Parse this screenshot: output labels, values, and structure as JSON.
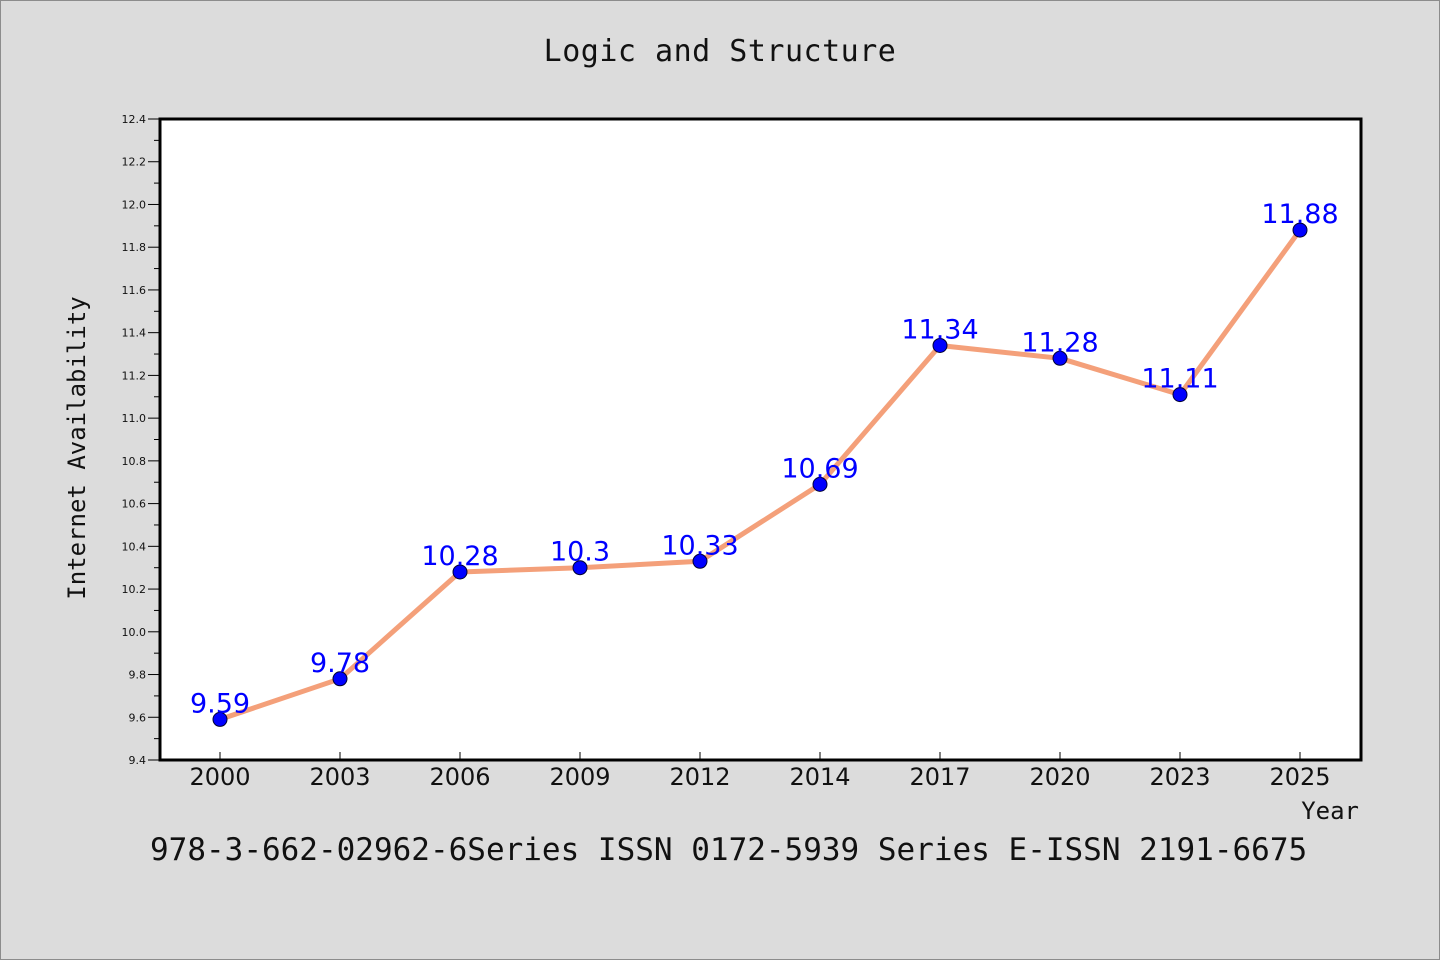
{
  "title": "Logic and Structure",
  "footer": "978-3-662-02962-6Series ISSN 0172-5939 Series E-ISSN 2191-6675",
  "chart_data": {
    "type": "line",
    "categories": [
      "2000",
      "2003",
      "2006",
      "2009",
      "2012",
      "2014",
      "2017",
      "2020",
      "2023",
      "2025"
    ],
    "series": [
      {
        "values": [
          9.59,
          9.78,
          10.28,
          10.3,
          10.33,
          10.69,
          11.34,
          11.28,
          11.11,
          11.88
        ],
        "labels": [
          "9.59",
          "9.78",
          "10.28",
          "10.3",
          "10.33",
          "10.69",
          "11.34",
          "11.28",
          "11.11",
          "11.88"
        ]
      }
    ],
    "xlabel": "Year",
    "ylabel": "Internet Availability",
    "ylim": [
      9.4,
      12.4
    ],
    "yticks": [
      "9.4",
      "9.6",
      "9.8",
      "10.0",
      "10.2",
      "10.4",
      "10.6",
      "10.8",
      "11.0",
      "11.2",
      "11.4",
      "11.6",
      "11.8",
      "12.0",
      "12.2",
      "12.4"
    ],
    "grid": false,
    "line_color": "#f4a07a",
    "marker_color": "#0000ff",
    "label_color": "#0000ff",
    "background": "#dcdcdc",
    "plot_background": "#ffffff"
  }
}
